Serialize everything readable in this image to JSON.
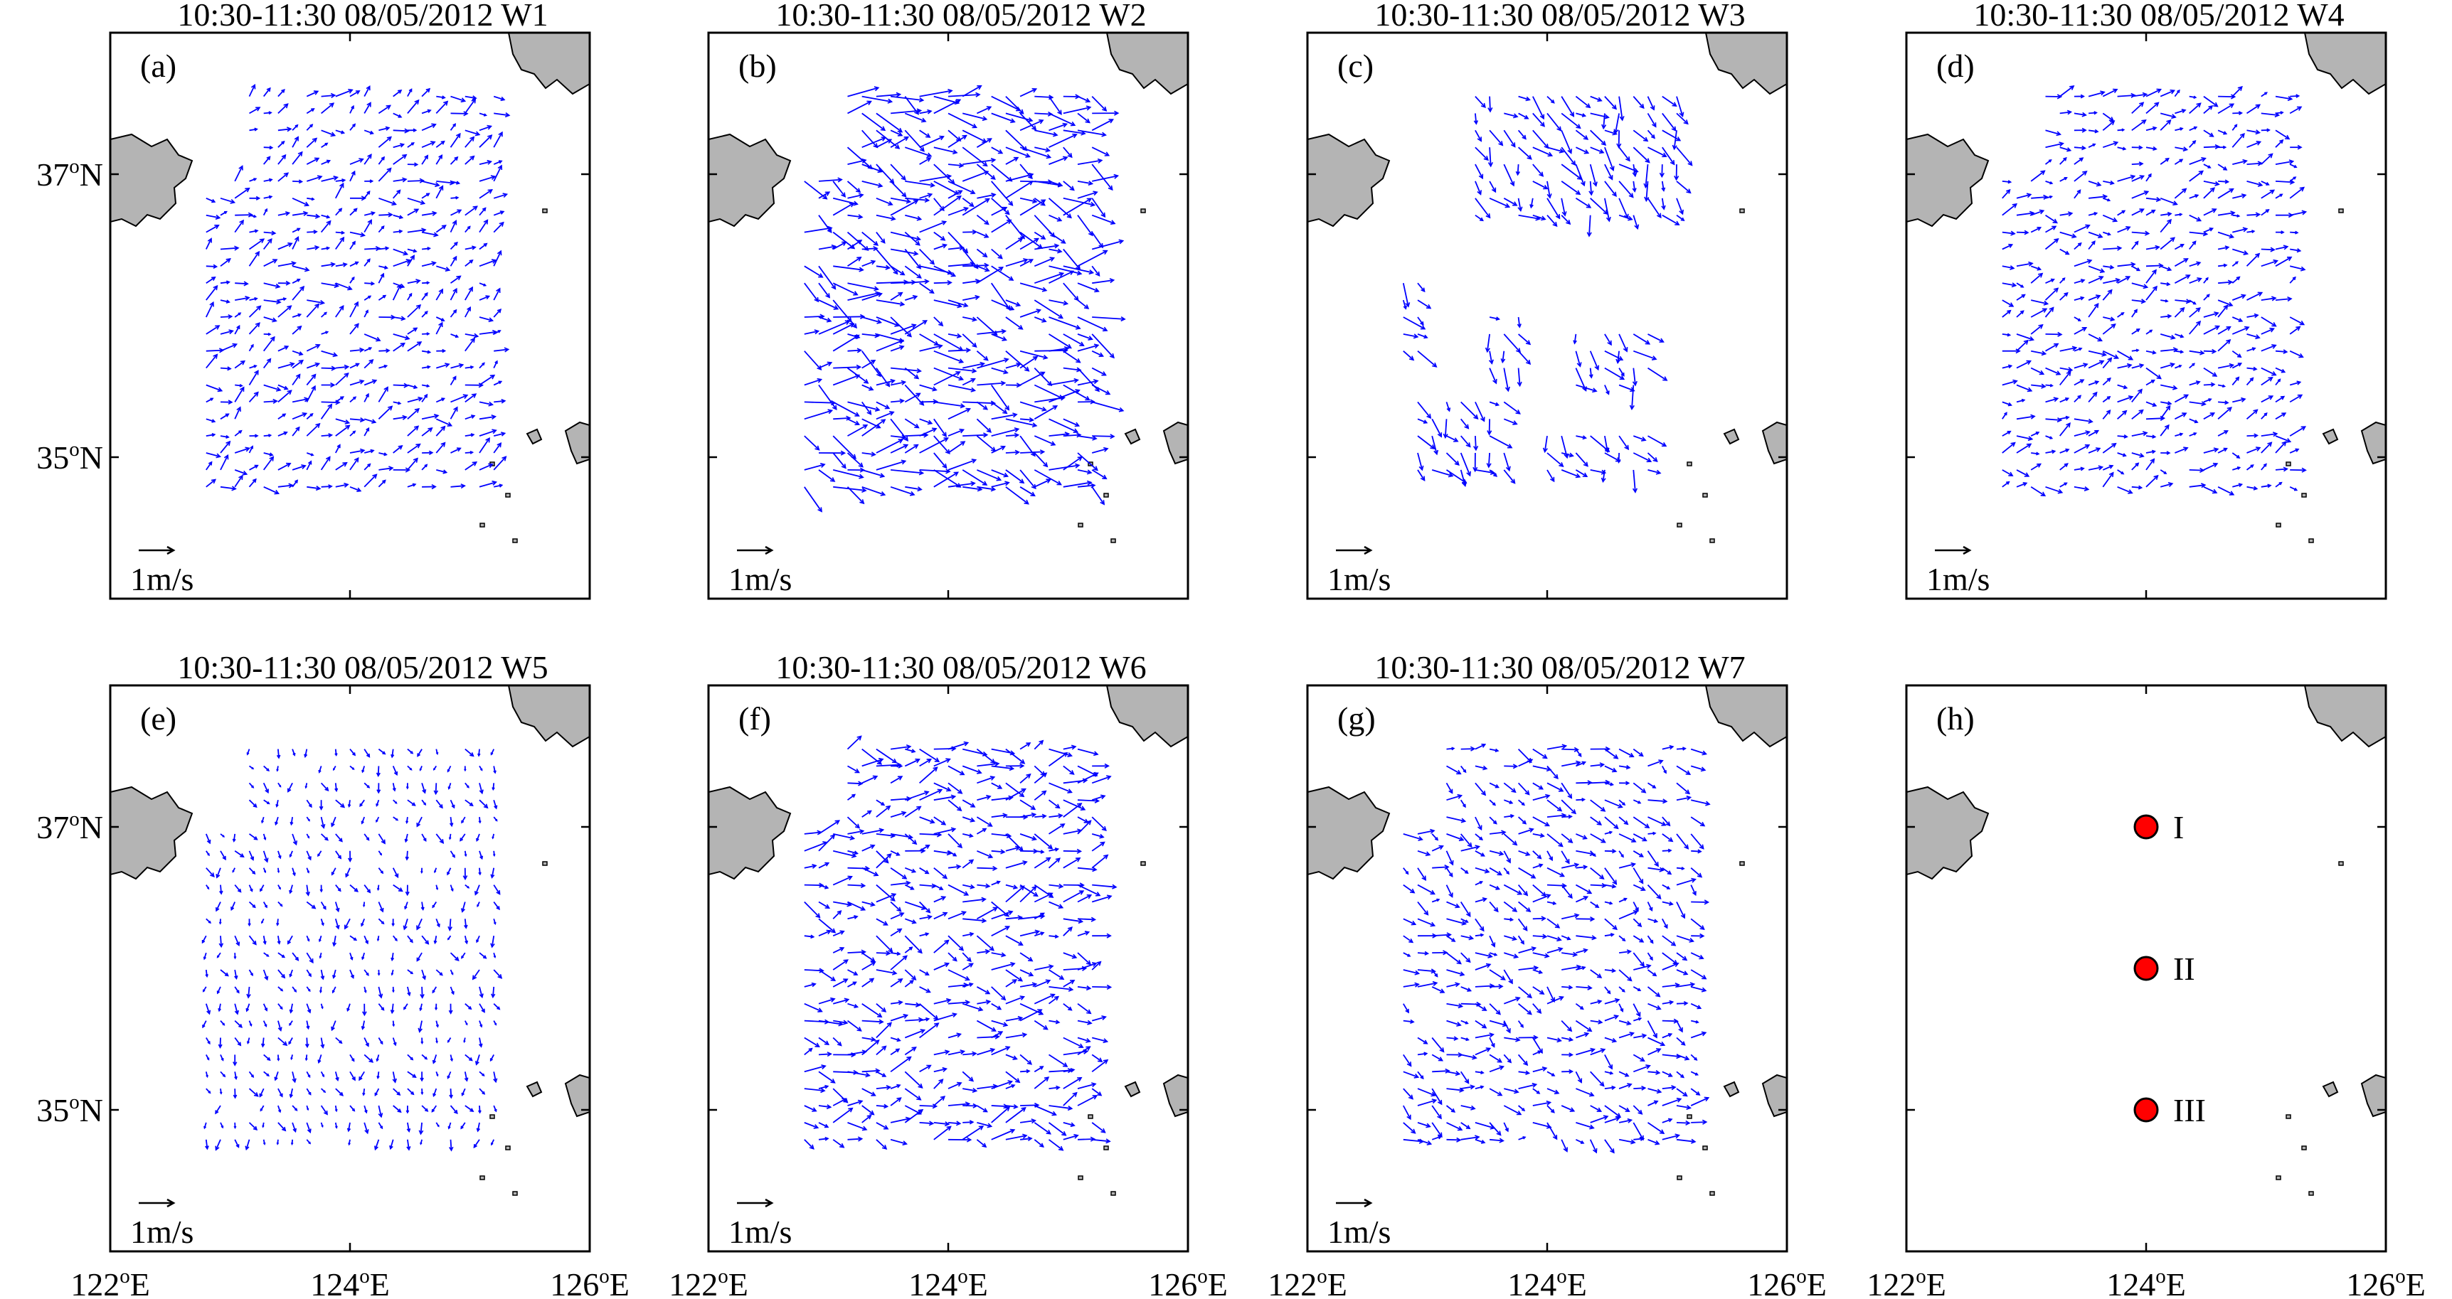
{
  "chart_data": {
    "type": "vector-field-map",
    "panel_titles": [
      "10:30-11:30  08/05/2012  W1",
      "10:30-11:30  08/05/2012  W2",
      "10:30-11:30  08/05/2012  W3",
      "10:30-11:30  08/05/2012  W4",
      "10:30-11:30  08/05/2012  W5",
      "10:30-11:30  08/05/2012  W6",
      "10:30-11:30  08/05/2012  W7"
    ],
    "panel_labels": [
      "(a)",
      "(b)",
      "(c)",
      "(d)",
      "(e)",
      "(f)",
      "(g)",
      "(h)"
    ],
    "xlim": [
      122,
      126
    ],
    "ylim": [
      34,
      38
    ],
    "x_ticks": [
      122,
      124,
      126
    ],
    "x_tick_label": {
      "prefix": "",
      "sup": "o",
      "suffix": "E"
    },
    "y_ticks": [
      35,
      37
    ],
    "y_tick_label": {
      "prefix": "",
      "sup": "o",
      "suffix": "N"
    },
    "scale_label": "1m/s",
    "scale_value_ms": 1,
    "vector_color": "#0000ff",
    "land_color": "#b4b4b4",
    "markers": [
      {
        "label": "I",
        "lon": 124.0,
        "lat": 37.0
      },
      {
        "label": "II",
        "lon": 124.0,
        "lat": 36.0
      },
      {
        "label": "III",
        "lon": 124.0,
        "lat": 35.0
      }
    ],
    "marker_color": "#ff0000"
  }
}
